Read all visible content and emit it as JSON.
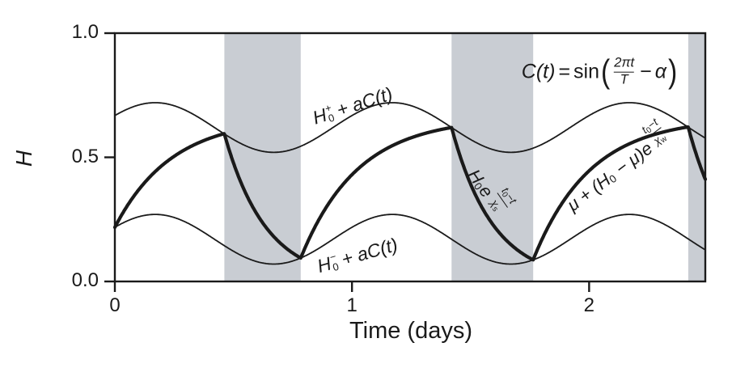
{
  "figure": {
    "background": "#ffffff",
    "ink": "#1a1a1a",
    "band_color": "#c9cdd3"
  },
  "chart_data": {
    "type": "line",
    "title": "",
    "xlabel": "Time (days)",
    "ylabel": "H",
    "xlim": [
      0,
      2.49
    ],
    "ylim": [
      0,
      1
    ],
    "grid": false,
    "xticks": [
      {
        "value": 0,
        "label": "0"
      },
      {
        "value": 1,
        "label": "1"
      },
      {
        "value": 2,
        "label": "2"
      }
    ],
    "yticks": [
      {
        "value": 0,
        "label": "0.0"
      },
      {
        "value": 0.5,
        "label": "0.5"
      },
      {
        "value": 1,
        "label": "1.0"
      }
    ],
    "model": {
      "T_days": 1,
      "phase_peak_t_days": 0.17,
      "amplitude_a": 0.1,
      "H0_plus_mean": 0.62,
      "H0_minus_mean": 0.17,
      "mu_asymptote": 0.66,
      "chi_w_days": 0.24,
      "chi_s_days": 0.175,
      "H_start": 0.218
    },
    "series": [
      {
        "name": "upper envelope H0+ + aC(t)",
        "style": "thin"
      },
      {
        "name": "lower envelope H0- + aC(t)",
        "style": "thin"
      },
      {
        "name": "H(t) storm decay / recovery trajectory",
        "style": "thick"
      }
    ],
    "thick_curve_keypoints_t_H": [
      [
        0,
        0.22
      ],
      [
        0.46,
        0.6
      ],
      [
        0.78,
        0.09
      ],
      [
        1.42,
        0.62
      ],
      [
        1.77,
        0.09
      ],
      [
        2.42,
        0.62
      ],
      [
        2.49,
        0.42
      ]
    ],
    "shaded_storm_bands_t": [
      [
        0.46,
        0.78
      ],
      [
        1.42,
        1.77
      ],
      [
        2.42,
        2.49
      ]
    ]
  },
  "labels": {
    "upper_envelope": {
      "base": "H",
      "sup": "+",
      "sub": "0",
      "rest": "+ aC(t)"
    },
    "lower_envelope": {
      "base": "H",
      "sup": "−",
      "sub": "0",
      "rest": "+ aC(t)"
    },
    "storm_decay": {
      "base": "H",
      "base_sub": "0",
      "exp_base": "e",
      "frac": {
        "num_main": "t",
        "num_sub": "0",
        "num_rest": "−t",
        "den_main": "χ",
        "den_sub": "s"
      }
    },
    "recovery": {
      "pre": "μ + (",
      "base": "H",
      "base_sub": "0",
      "mid": " − μ)",
      "exp_base": "e",
      "frac": {
        "num_main": "t",
        "num_sub": "0",
        "num_rest": "−t",
        "den_main": "χ",
        "den_sub": "w"
      }
    },
    "equation": {
      "lhs": "C(t)",
      "equals": "=",
      "func": "sin",
      "lparen": "(",
      "frac": {
        "num": "2πt",
        "den": "T"
      },
      "minus": "−",
      "alpha": "α",
      "rparen": ")"
    }
  }
}
